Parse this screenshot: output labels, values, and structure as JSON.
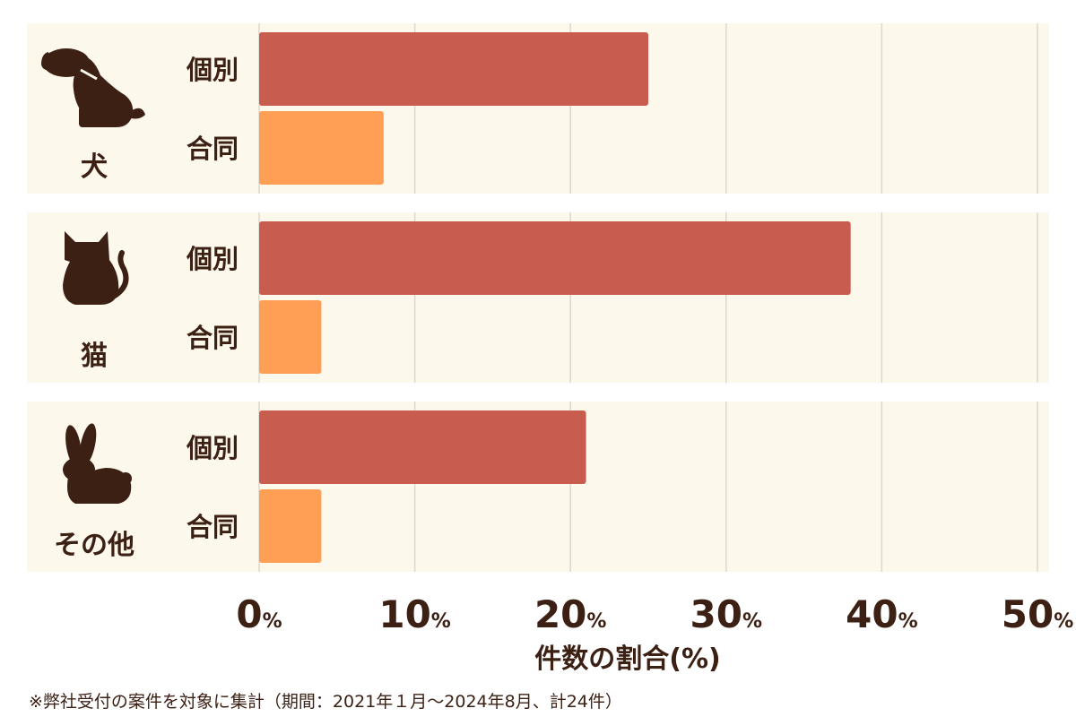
{
  "chart_data": {
    "type": "bar",
    "orientation": "horizontal",
    "groups": [
      {
        "name": "犬",
        "icon": "dog-icon"
      },
      {
        "name": "猫",
        "icon": "cat-icon"
      },
      {
        "name": "その他",
        "icon": "rabbit-icon"
      }
    ],
    "series": [
      {
        "name": "個別",
        "color": "#c85c4f",
        "values": [
          25,
          38,
          21
        ]
      },
      {
        "name": "合同",
        "color": "#ff9f55",
        "values": [
          8,
          4,
          4
        ]
      }
    ],
    "xlim": [
      0,
      50
    ],
    "xticks": [
      0,
      10,
      20,
      30,
      40,
      50
    ],
    "tick_suffix": "%",
    "xlabel": "件数の割合(%)",
    "grid": true,
    "legend": "none"
  },
  "colors": {
    "panel_bg": "#fdf8ec",
    "grid": "#ded8cb",
    "text": "#3d2014"
  },
  "footnote": "※弊社受付の案件を対象に集計（期間：2021年１月〜2024年8月、計24件）"
}
